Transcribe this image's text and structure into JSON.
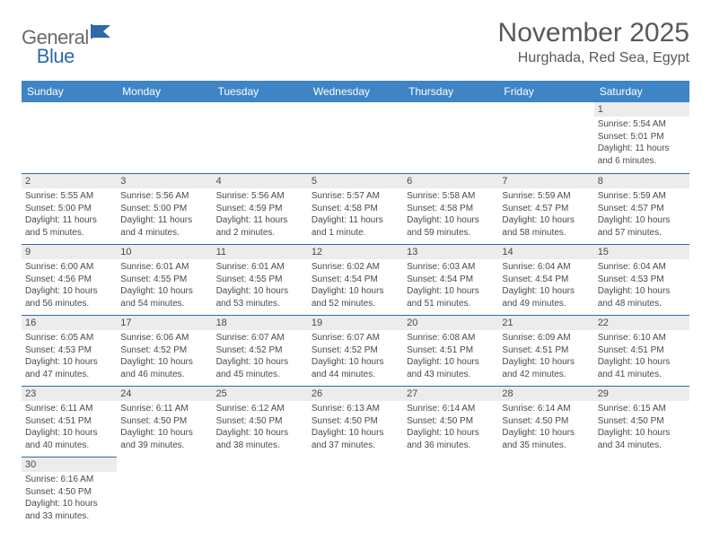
{
  "logo": {
    "part1": "General",
    "part2": "Blue"
  },
  "title": "November 2025",
  "location": "Hurghada, Red Sea, Egypt",
  "colors": {
    "header_bg": "#3f85c6",
    "header_text": "#ffffff",
    "daynum_bg": "#ececec",
    "border": "#2f6aa8",
    "body_text": "#4a4a4a",
    "logo_gray": "#6a6a6a",
    "logo_blue": "#2f6aa8"
  },
  "weekdays": [
    "Sunday",
    "Monday",
    "Tuesday",
    "Wednesday",
    "Thursday",
    "Friday",
    "Saturday"
  ],
  "weeks": [
    [
      null,
      null,
      null,
      null,
      null,
      null,
      {
        "n": "1",
        "sr": "Sunrise: 5:54 AM",
        "ss": "Sunset: 5:01 PM",
        "dl": "Daylight: 11 hours and 6 minutes."
      }
    ],
    [
      {
        "n": "2",
        "sr": "Sunrise: 5:55 AM",
        "ss": "Sunset: 5:00 PM",
        "dl": "Daylight: 11 hours and 5 minutes."
      },
      {
        "n": "3",
        "sr": "Sunrise: 5:56 AM",
        "ss": "Sunset: 5:00 PM",
        "dl": "Daylight: 11 hours and 4 minutes."
      },
      {
        "n": "4",
        "sr": "Sunrise: 5:56 AM",
        "ss": "Sunset: 4:59 PM",
        "dl": "Daylight: 11 hours and 2 minutes."
      },
      {
        "n": "5",
        "sr": "Sunrise: 5:57 AM",
        "ss": "Sunset: 4:58 PM",
        "dl": "Daylight: 11 hours and 1 minute."
      },
      {
        "n": "6",
        "sr": "Sunrise: 5:58 AM",
        "ss": "Sunset: 4:58 PM",
        "dl": "Daylight: 10 hours and 59 minutes."
      },
      {
        "n": "7",
        "sr": "Sunrise: 5:59 AM",
        "ss": "Sunset: 4:57 PM",
        "dl": "Daylight: 10 hours and 58 minutes."
      },
      {
        "n": "8",
        "sr": "Sunrise: 5:59 AM",
        "ss": "Sunset: 4:57 PM",
        "dl": "Daylight: 10 hours and 57 minutes."
      }
    ],
    [
      {
        "n": "9",
        "sr": "Sunrise: 6:00 AM",
        "ss": "Sunset: 4:56 PM",
        "dl": "Daylight: 10 hours and 56 minutes."
      },
      {
        "n": "10",
        "sr": "Sunrise: 6:01 AM",
        "ss": "Sunset: 4:55 PM",
        "dl": "Daylight: 10 hours and 54 minutes."
      },
      {
        "n": "11",
        "sr": "Sunrise: 6:01 AM",
        "ss": "Sunset: 4:55 PM",
        "dl": "Daylight: 10 hours and 53 minutes."
      },
      {
        "n": "12",
        "sr": "Sunrise: 6:02 AM",
        "ss": "Sunset: 4:54 PM",
        "dl": "Daylight: 10 hours and 52 minutes."
      },
      {
        "n": "13",
        "sr": "Sunrise: 6:03 AM",
        "ss": "Sunset: 4:54 PM",
        "dl": "Daylight: 10 hours and 51 minutes."
      },
      {
        "n": "14",
        "sr": "Sunrise: 6:04 AM",
        "ss": "Sunset: 4:54 PM",
        "dl": "Daylight: 10 hours and 49 minutes."
      },
      {
        "n": "15",
        "sr": "Sunrise: 6:04 AM",
        "ss": "Sunset: 4:53 PM",
        "dl": "Daylight: 10 hours and 48 minutes."
      }
    ],
    [
      {
        "n": "16",
        "sr": "Sunrise: 6:05 AM",
        "ss": "Sunset: 4:53 PM",
        "dl": "Daylight: 10 hours and 47 minutes."
      },
      {
        "n": "17",
        "sr": "Sunrise: 6:06 AM",
        "ss": "Sunset: 4:52 PM",
        "dl": "Daylight: 10 hours and 46 minutes."
      },
      {
        "n": "18",
        "sr": "Sunrise: 6:07 AM",
        "ss": "Sunset: 4:52 PM",
        "dl": "Daylight: 10 hours and 45 minutes."
      },
      {
        "n": "19",
        "sr": "Sunrise: 6:07 AM",
        "ss": "Sunset: 4:52 PM",
        "dl": "Daylight: 10 hours and 44 minutes."
      },
      {
        "n": "20",
        "sr": "Sunrise: 6:08 AM",
        "ss": "Sunset: 4:51 PM",
        "dl": "Daylight: 10 hours and 43 minutes."
      },
      {
        "n": "21",
        "sr": "Sunrise: 6:09 AM",
        "ss": "Sunset: 4:51 PM",
        "dl": "Daylight: 10 hours and 42 minutes."
      },
      {
        "n": "22",
        "sr": "Sunrise: 6:10 AM",
        "ss": "Sunset: 4:51 PM",
        "dl": "Daylight: 10 hours and 41 minutes."
      }
    ],
    [
      {
        "n": "23",
        "sr": "Sunrise: 6:11 AM",
        "ss": "Sunset: 4:51 PM",
        "dl": "Daylight: 10 hours and 40 minutes."
      },
      {
        "n": "24",
        "sr": "Sunrise: 6:11 AM",
        "ss": "Sunset: 4:50 PM",
        "dl": "Daylight: 10 hours and 39 minutes."
      },
      {
        "n": "25",
        "sr": "Sunrise: 6:12 AM",
        "ss": "Sunset: 4:50 PM",
        "dl": "Daylight: 10 hours and 38 minutes."
      },
      {
        "n": "26",
        "sr": "Sunrise: 6:13 AM",
        "ss": "Sunset: 4:50 PM",
        "dl": "Daylight: 10 hours and 37 minutes."
      },
      {
        "n": "27",
        "sr": "Sunrise: 6:14 AM",
        "ss": "Sunset: 4:50 PM",
        "dl": "Daylight: 10 hours and 36 minutes."
      },
      {
        "n": "28",
        "sr": "Sunrise: 6:14 AM",
        "ss": "Sunset: 4:50 PM",
        "dl": "Daylight: 10 hours and 35 minutes."
      },
      {
        "n": "29",
        "sr": "Sunrise: 6:15 AM",
        "ss": "Sunset: 4:50 PM",
        "dl": "Daylight: 10 hours and 34 minutes."
      }
    ],
    [
      {
        "n": "30",
        "sr": "Sunrise: 6:16 AM",
        "ss": "Sunset: 4:50 PM",
        "dl": "Daylight: 10 hours and 33 minutes."
      },
      null,
      null,
      null,
      null,
      null,
      null
    ]
  ]
}
